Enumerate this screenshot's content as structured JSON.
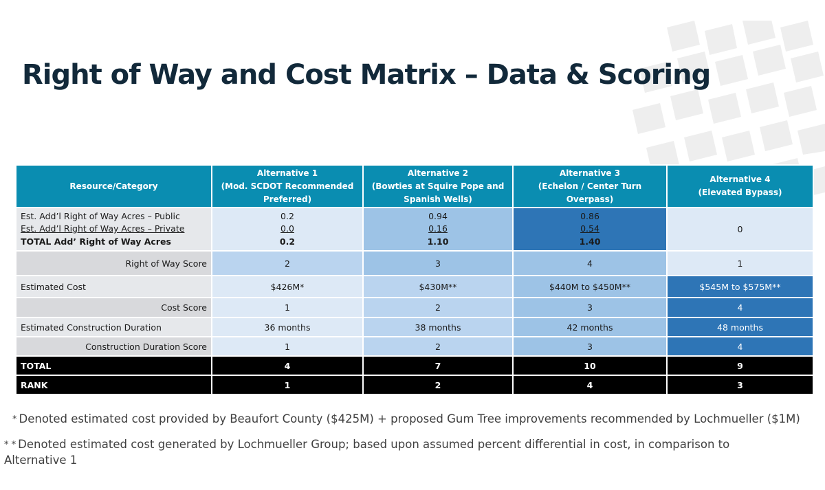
{
  "title": "Right of Way and Cost Matrix – Data & Scoring",
  "table": {
    "headers": {
      "category": "Resource/Category",
      "alternatives": [
        {
          "name": "Alternative 1",
          "subtitle": "(Mod. SCDOT Recommended Preferred)"
        },
        {
          "name": "Alternative 2",
          "subtitle": "(Bowties at Squire Pope and Spanish Wells)"
        },
        {
          "name": "Alternative 3",
          "subtitle": "(Echelon / Center Turn Overpass)"
        },
        {
          "name": "Alternative 4",
          "subtitle": "(Elevated Bypass)"
        }
      ]
    },
    "row_acres": {
      "label_public": "Est. Add’l Right of Way Acres – Public",
      "label_private": "Est. Add’l Right of Way Acres – Private",
      "label_total": "TOTAL Add’ Right of Way Acres",
      "alt1": {
        "public": "0.2",
        "private": "0.0",
        "total": "0.2"
      },
      "alt2": {
        "public": "0.94",
        "private": "0.16",
        "total": "1.10"
      },
      "alt3": {
        "public": "0.86",
        "private": "0.54",
        "total": "1.40"
      },
      "alt4": {
        "value": "0"
      }
    },
    "row_row_score": {
      "label": "Right of Way Score",
      "values": [
        "2",
        "3",
        "4",
        "1"
      ]
    },
    "row_cost": {
      "label": "Estimated Cost",
      "values": [
        "$426M*",
        "$430M**",
        "$440M to $450M**",
        "$545M to $575M**"
      ]
    },
    "row_cost_score": {
      "label": "Cost Score",
      "values": [
        "1",
        "2",
        "3",
        "4"
      ]
    },
    "row_duration": {
      "label": "Estimated Construction Duration",
      "values": [
        "36 months",
        "38 months",
        "42 months",
        "48 months"
      ]
    },
    "row_duration_score": {
      "label": "Construction Duration Score",
      "values": [
        "1",
        "2",
        "3",
        "4"
      ]
    },
    "row_total": {
      "label": "TOTAL",
      "values": [
        "4",
        "7",
        "10",
        "9"
      ]
    },
    "row_rank": {
      "label": "RANK",
      "values": [
        "1",
        "2",
        "4",
        "3"
      ]
    }
  },
  "footnotes": {
    "star1": "*",
    "note1": "Denoted estimated cost provided by Beaufort County ($425M) + proposed Gum Tree improvements recommended by Lochmueller ($1M)",
    "star2": "* *",
    "note2": "Denoted estimated cost generated by Lochmueller Group; based upon assumed percent differential in cost, in comparison to Alternative 1"
  },
  "colors": {
    "title": "#12293a",
    "header": "#0a8db1",
    "score_1": "#dde9f6",
    "score_2": "#bad4ef",
    "score_3": "#9dc3e6",
    "score_4": "#2e75b6",
    "total_rows": "#000000"
  }
}
